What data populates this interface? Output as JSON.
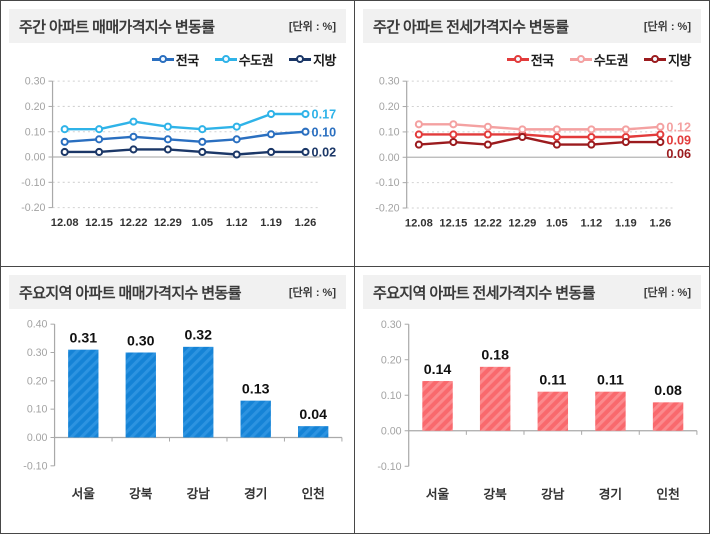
{
  "chart_data": [
    {
      "type": "line",
      "title": "주간 아파트 매매가격지수 변동률",
      "unit": "[단위 : %]",
      "categories": [
        "12.08",
        "12.15",
        "12.22",
        "12.29",
        "1.05",
        "1.12",
        "1.19",
        "1.26"
      ],
      "series": [
        {
          "name": "전국",
          "color": "#2a6fc0",
          "values": [
            0.06,
            0.07,
            0.08,
            0.07,
            0.06,
            0.07,
            0.09,
            0.1
          ],
          "end_label": "0.10"
        },
        {
          "name": "수도권",
          "color": "#2fb3e8",
          "values": [
            0.11,
            0.11,
            0.14,
            0.12,
            0.11,
            0.12,
            0.17,
            0.17
          ],
          "end_label": "0.17"
        },
        {
          "name": "지방",
          "color": "#1b3767",
          "values": [
            0.02,
            0.02,
            0.03,
            0.03,
            0.02,
            0.01,
            0.02,
            0.02
          ],
          "end_label": "0.02"
        }
      ],
      "ylim": [
        -0.2,
        0.3
      ],
      "yticks": [
        0.3,
        0.2,
        0.1,
        0.0,
        -0.1,
        -0.2
      ],
      "grid": true,
      "legend_position": "top-right"
    },
    {
      "type": "line",
      "title": "주간 아파트 전세가격지수 변동률",
      "unit": "[단위 : %]",
      "categories": [
        "12.08",
        "12.15",
        "12.22",
        "12.29",
        "1.05",
        "1.12",
        "1.19",
        "1.26"
      ],
      "series": [
        {
          "name": "전국",
          "color": "#e23b3b",
          "values": [
            0.09,
            0.09,
            0.09,
            0.09,
            0.08,
            0.08,
            0.08,
            0.09
          ],
          "end_label": "0.09"
        },
        {
          "name": "수도권",
          "color": "#f4a1a1",
          "values": [
            0.13,
            0.13,
            0.12,
            0.11,
            0.11,
            0.11,
            0.11,
            0.12
          ],
          "end_label": "0.12"
        },
        {
          "name": "지방",
          "color": "#9b1b1e",
          "values": [
            0.05,
            0.06,
            0.05,
            0.08,
            0.05,
            0.05,
            0.06,
            0.06
          ],
          "end_label": "0.06"
        }
      ],
      "ylim": [
        -0.2,
        0.3
      ],
      "yticks": [
        0.3,
        0.2,
        0.1,
        0.0,
        -0.1,
        -0.2
      ],
      "grid": true,
      "legend_position": "top-right"
    },
    {
      "type": "bar",
      "title": "주요지역 아파트 매매가격지수 변동률",
      "unit": "[단위 : %]",
      "categories": [
        "서울",
        "강북",
        "강남",
        "경기",
        "인천"
      ],
      "values": [
        0.31,
        0.3,
        0.32,
        0.13,
        0.04
      ],
      "value_labels": [
        "0.31",
        "0.30",
        "0.32",
        "0.13",
        "0.04"
      ],
      "bar_color": "#1583d6",
      "bar_stripe_color": "#2d93e0",
      "ylim": [
        -0.1,
        0.4
      ],
      "yticks": [
        0.4,
        0.3,
        0.2,
        0.1,
        0.0,
        -0.1
      ],
      "grid": false
    },
    {
      "type": "bar",
      "title": "주요지역 아파트 전세가격지수 변동률",
      "unit": "[단위 : %]",
      "categories": [
        "서울",
        "강북",
        "강남",
        "경기",
        "인천"
      ],
      "values": [
        0.14,
        0.18,
        0.11,
        0.11,
        0.08
      ],
      "value_labels": [
        "0.14",
        "0.18",
        "0.11",
        "0.11",
        "0.08"
      ],
      "bar_color": "#f9696d",
      "bar_stripe_color": "#fb8a8d",
      "ylim": [
        -0.1,
        0.3
      ],
      "yticks": [
        0.3,
        0.2,
        0.1,
        0.0,
        -0.1
      ],
      "grid": false
    }
  ]
}
